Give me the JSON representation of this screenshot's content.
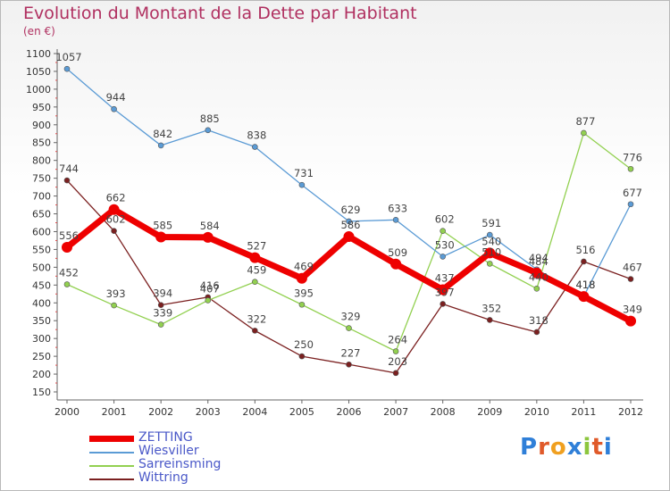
{
  "title": "Evolution du Montant de la Dette par Habitant",
  "unit": "(en €)",
  "logo": "Proxiti",
  "chart_data": {
    "type": "line",
    "title": "Evolution du Montant de la Dette par Habitant",
    "ylabel": "(en €)",
    "x": [
      2000,
      2001,
      2002,
      2003,
      2004,
      2005,
      2006,
      2007,
      2008,
      2009,
      2010,
      2011,
      2012
    ],
    "ylim": [
      150,
      1100
    ],
    "yticks": [
      150,
      200,
      250,
      300,
      350,
      400,
      450,
      500,
      550,
      600,
      650,
      700,
      750,
      800,
      850,
      900,
      950,
      1000,
      1050,
      1100
    ],
    "grid": false,
    "legend": "bottom-left",
    "series": [
      {
        "name": "ZETTING",
        "color": "#ee0000",
        "values": [
          556,
          662,
          585,
          584,
          527,
          469,
          586,
          509,
          437,
          540,
          484,
          418,
          349
        ]
      },
      {
        "name": "Wiesviller",
        "color": "#5b9bd5",
        "values": [
          1057,
          944,
          842,
          885,
          838,
          731,
          629,
          633,
          530,
          591,
          494,
          418,
          677
        ]
      },
      {
        "name": "Sarreinsming",
        "color": "#92d050",
        "values": [
          452,
          393,
          339,
          407,
          459,
          395,
          329,
          264,
          602,
          510,
          440,
          877,
          776
        ]
      },
      {
        "name": "Wittring",
        "color": "#7b2020",
        "values": [
          744,
          602,
          394,
          416,
          322,
          250,
          227,
          203,
          397,
          352,
          318,
          516,
          467
        ]
      }
    ]
  }
}
